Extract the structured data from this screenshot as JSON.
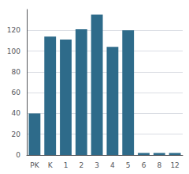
{
  "chart_data": {
    "type": "bar",
    "categories": [
      "PK",
      "K",
      "1",
      "2",
      "3",
      "4",
      "5",
      "6",
      "8",
      "12"
    ],
    "values": [
      40,
      114,
      111,
      121,
      135,
      104,
      120,
      2,
      2,
      2
    ],
    "color": "#2e6b8a",
    "ylim": [
      0,
      140
    ],
    "yticks": [
      0,
      20,
      40,
      60,
      80,
      100,
      120
    ],
    "grid": true
  }
}
